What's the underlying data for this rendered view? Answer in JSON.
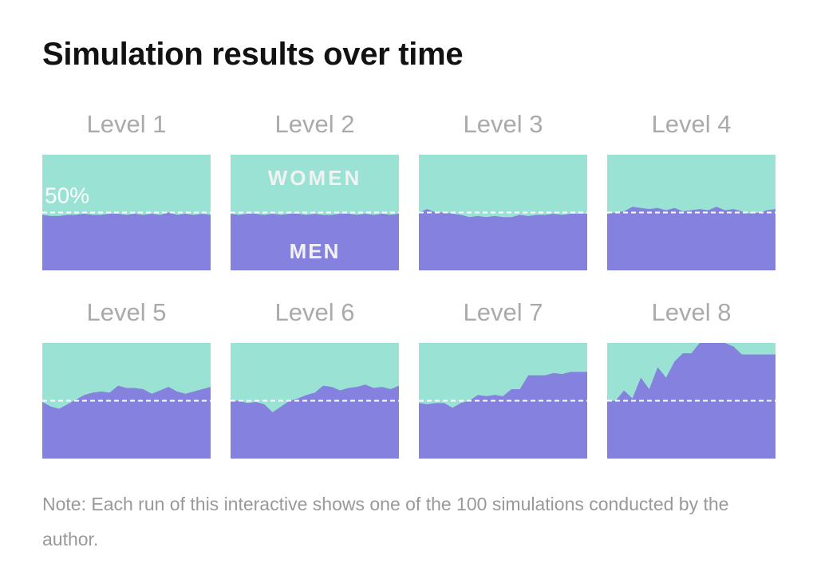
{
  "title": "Simulation results over time",
  "note": "Note: Each run of this interactive shows one of the 100 simulations conducted by the author.",
  "colors": {
    "women": "#99e2d4",
    "men": "#8581de",
    "reference_line": "#ffffff",
    "panel_label": "#aaaaaa",
    "annotation": "#f2f2f2"
  },
  "chart_data": {
    "type": "area",
    "y_unit": "share of men (%)",
    "ylim": [
      0,
      100
    ],
    "reference_value": 50,
    "reference_label": "50%",
    "area_labels": {
      "top": "WOMEN",
      "bottom": "MEN"
    },
    "panels": [
      {
        "label": "Level 1",
        "values": [
          48,
          47,
          47,
          48,
          48,
          49,
          48,
          48,
          49,
          49,
          48,
          49,
          48,
          49,
          48,
          50,
          48,
          49,
          48,
          49,
          48
        ]
      },
      {
        "label": "Level 2",
        "values": [
          49,
          48,
          49,
          49,
          48,
          49,
          48,
          49,
          49,
          48,
          49,
          48,
          48,
          49,
          49,
          48,
          49,
          48,
          49,
          48,
          49
        ]
      },
      {
        "label": "Level 3",
        "values": [
          50,
          53,
          50,
          50,
          49,
          48,
          46,
          47,
          46,
          47,
          46,
          46,
          48,
          47,
          48,
          48,
          49,
          48,
          49,
          49,
          49
        ]
      },
      {
        "label": "Level 4",
        "values": [
          49,
          50,
          51,
          55,
          54,
          53,
          54,
          52,
          54,
          51,
          52,
          53,
          52,
          55,
          52,
          53,
          51,
          49,
          50,
          52,
          53
        ]
      },
      {
        "label": "Level 5",
        "values": [
          49,
          45,
          43,
          47,
          51,
          55,
          57,
          58,
          57,
          63,
          61,
          61,
          60,
          56,
          59,
          62,
          58,
          56,
          58,
          60,
          62
        ]
      },
      {
        "label": "Level 6",
        "values": [
          50,
          50,
          48,
          49,
          47,
          40,
          45,
          50,
          52,
          55,
          57,
          63,
          62,
          59,
          61,
          62,
          64,
          61,
          62,
          60,
          63
        ]
      },
      {
        "label": "Level 7",
        "values": [
          48,
          47,
          48,
          48,
          44,
          48,
          50,
          55,
          54,
          55,
          54,
          60,
          60,
          72,
          72,
          72,
          74,
          73,
          75,
          75,
          75
        ]
      },
      {
        "label": "Level 8",
        "values": [
          50,
          50,
          59,
          52,
          70,
          60,
          79,
          70,
          84,
          91,
          91,
          100,
          100,
          100,
          100,
          97,
          90,
          90,
          90,
          90,
          90
        ]
      }
    ]
  }
}
